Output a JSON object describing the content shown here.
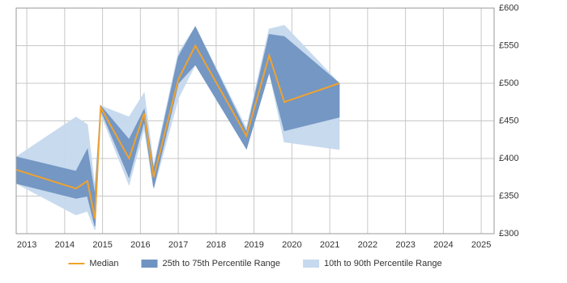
{
  "chart_data": {
    "type": "line",
    "x": [
      2012.72,
      2014.3,
      2014.6,
      2014.8,
      2014.95,
      2015.7,
      2016.1,
      2016.35,
      2017.0,
      2017.45,
      2018.8,
      2019.4,
      2019.8,
      2021.25
    ],
    "series": [
      {
        "name": "Median",
        "color": "#f0a22e",
        "type": "line",
        "values": [
          385,
          360,
          370,
          320,
          468,
          400,
          460,
          375,
          505,
          550,
          430,
          537,
          475,
          500
        ]
      },
      {
        "name": "25th to 75th Percentile Range",
        "color": "#7094c1",
        "type": "band",
        "high": [
          402,
          383,
          412,
          350,
          470,
          425,
          465,
          385,
          535,
          575,
          435,
          565,
          562,
          500
        ],
        "low": [
          367,
          347,
          350,
          310,
          465,
          375,
          450,
          362,
          500,
          525,
          413,
          515,
          437,
          455
        ]
      },
      {
        "name": "10th to 90th Percentile Range",
        "color": "#c6d9ee",
        "type": "band",
        "high": [
          402,
          455,
          445,
          360,
          470,
          455,
          487,
          390,
          540,
          575,
          440,
          572,
          577,
          500
        ],
        "low": [
          367,
          325,
          330,
          305,
          460,
          365,
          440,
          360,
          480,
          525,
          413,
          515,
          422,
          412
        ]
      }
    ],
    "xlim": [
      2012.72,
      2025.34
    ],
    "xticks": [
      2013,
      2014,
      2015,
      2016,
      2017,
      2018,
      2019,
      2020,
      2021,
      2022,
      2023,
      2024,
      2025
    ],
    "ylim": [
      300,
      600
    ],
    "yticks": [
      {
        "value": 300,
        "label": "£300"
      },
      {
        "value": 350,
        "label": "£350"
      },
      {
        "value": 400,
        "label": "£400"
      },
      {
        "value": 450,
        "label": "£450"
      },
      {
        "value": 500,
        "label": "£500"
      },
      {
        "value": 550,
        "label": "£550"
      },
      {
        "value": 600,
        "label": "£600"
      }
    ],
    "grid": true,
    "legend": "bottom"
  }
}
